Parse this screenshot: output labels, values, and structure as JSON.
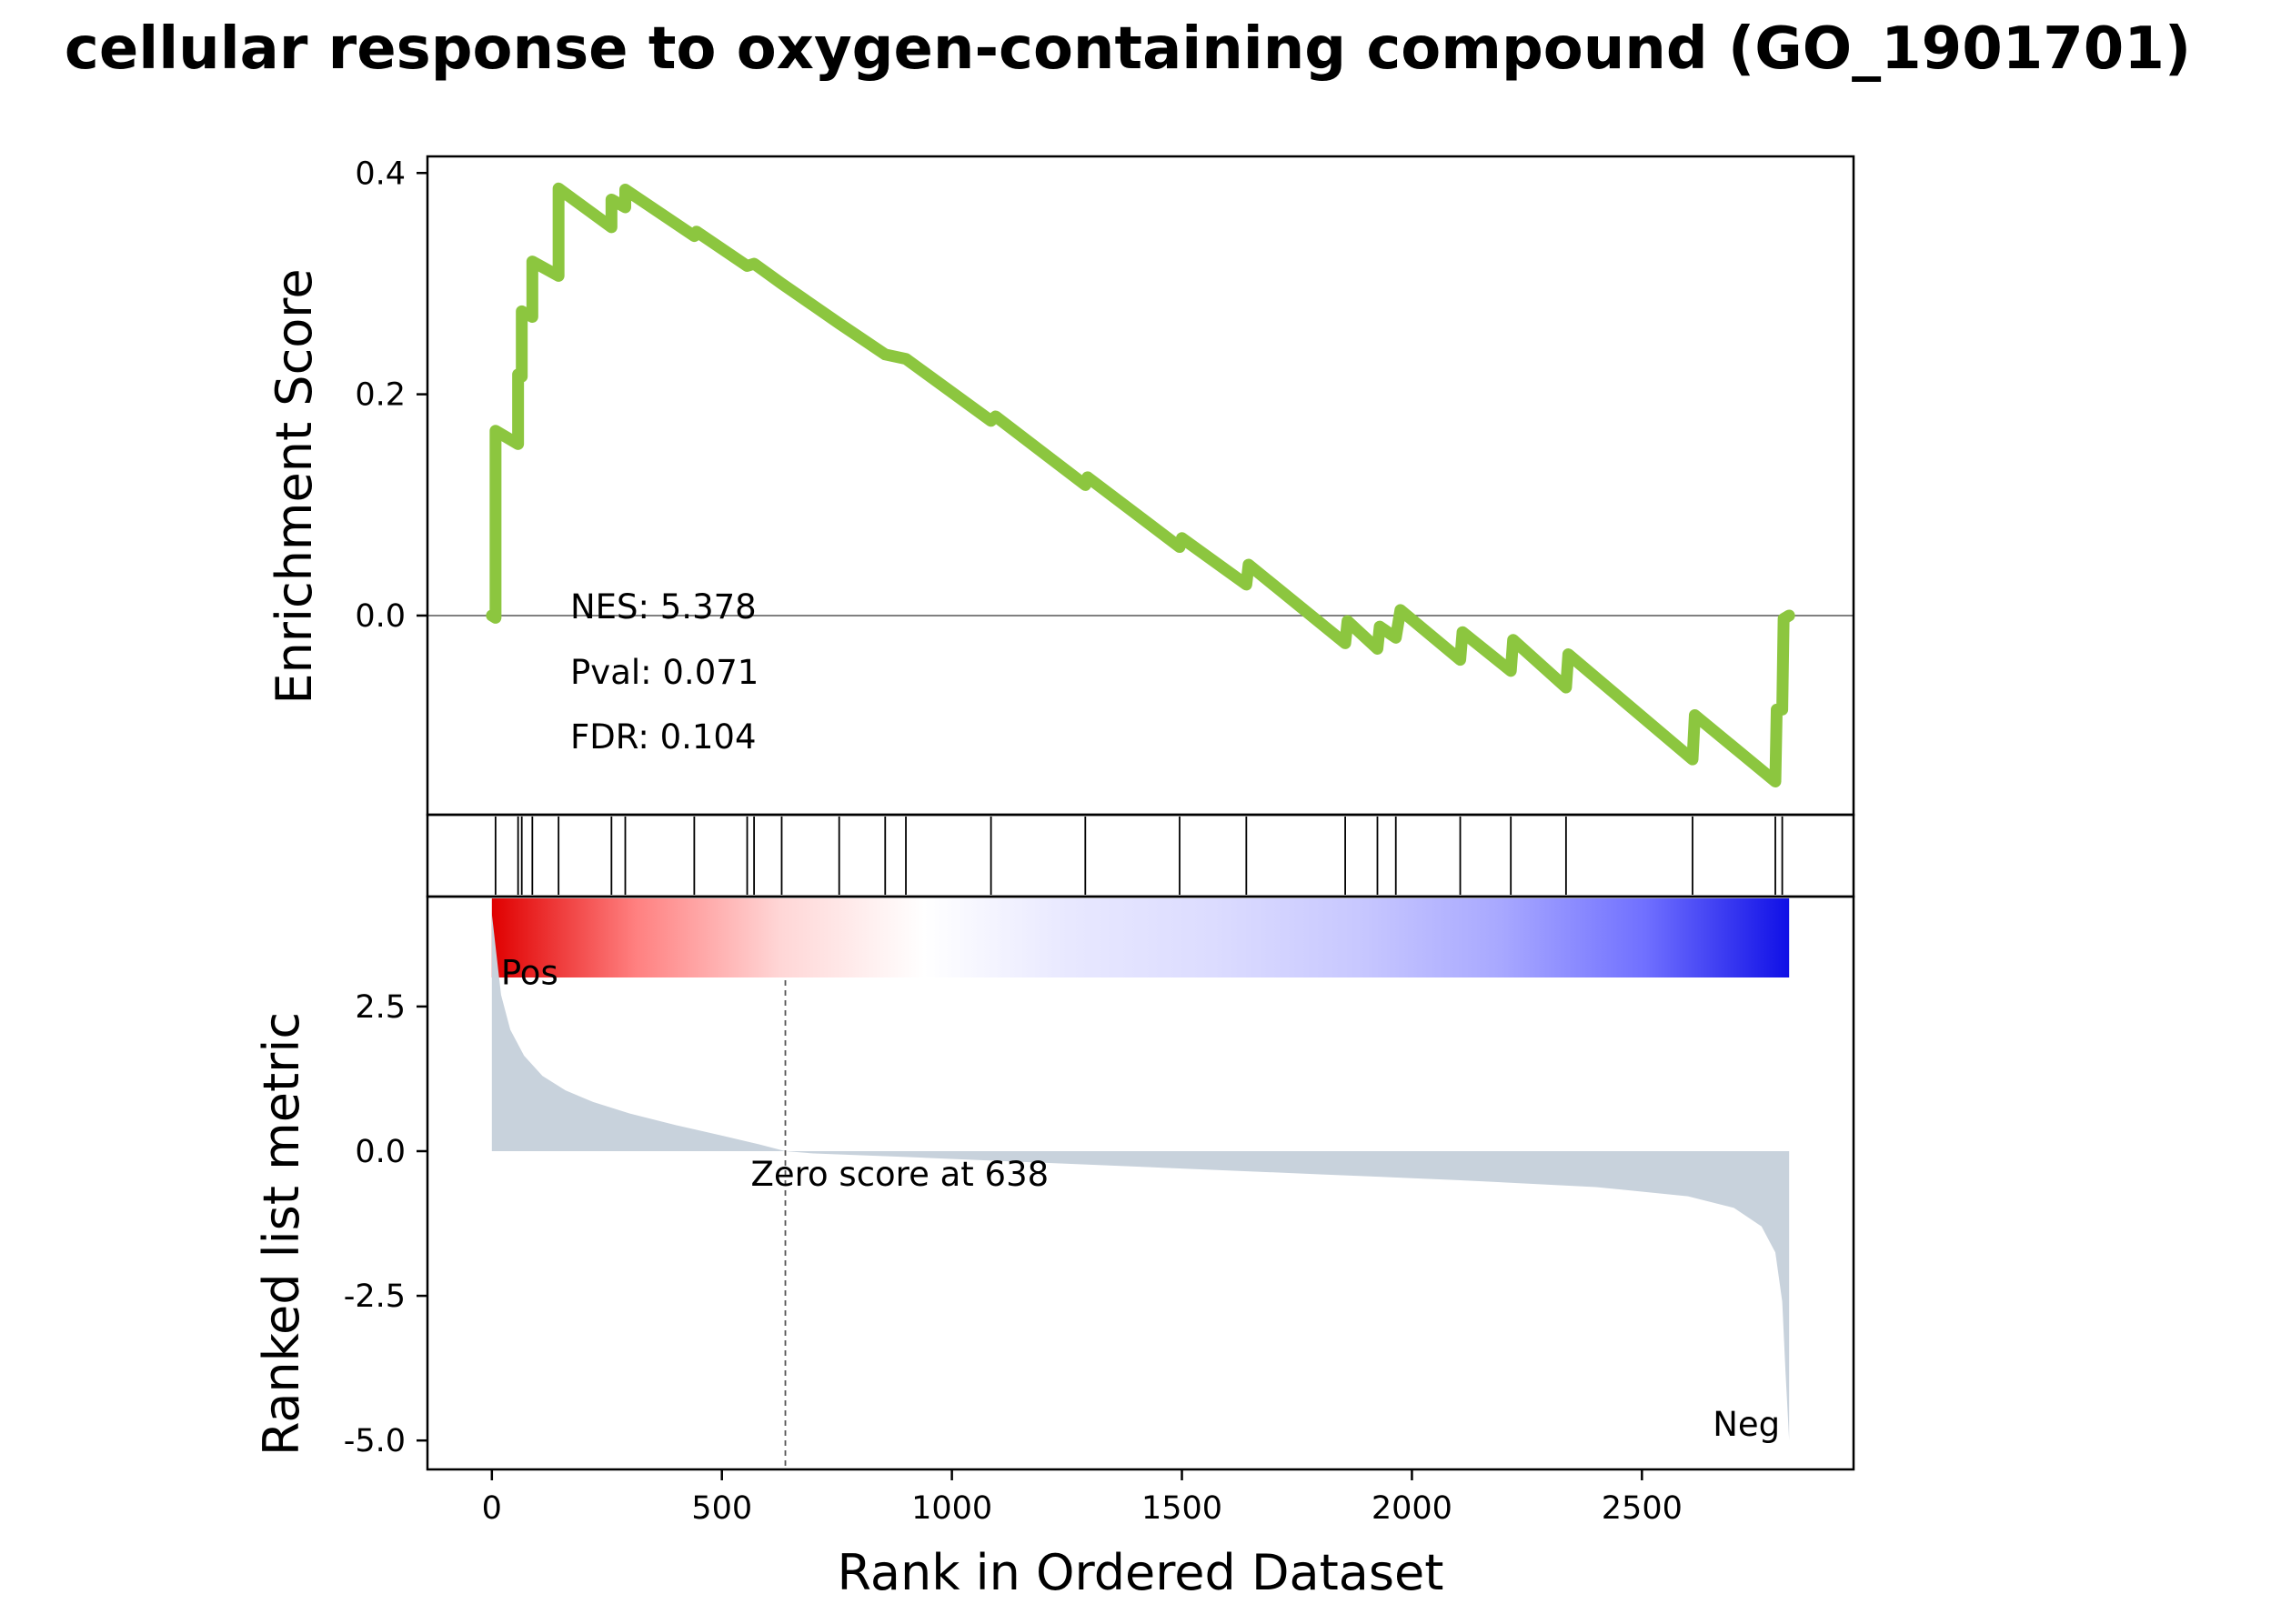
{
  "chart_data": {
    "type": "line",
    "title": "cellular response to oxygen-containing compound (GO_1901701)",
    "xlabel": "Rank in Ordered Dataset",
    "xlim": [
      -140,
      2960
    ],
    "x_ticks": [
      0,
      500,
      1000,
      1500,
      2000,
      2500
    ],
    "x_tick_labels": [
      "0",
      "500",
      "1000",
      "1500",
      "2000",
      "2500"
    ],
    "n_genes": 2820,
    "es_panel": {
      "ylabel": "Enrichment Score",
      "ylim": [
        -0.18,
        0.415
      ],
      "y_ticks": [
        0.0,
        0.2,
        0.4
      ],
      "y_tick_labels": [
        "0.0",
        "0.2",
        "0.4"
      ],
      "line_color": "#8cc63f",
      "zero_line_color": "#808080",
      "stats": {
        "nes": "NES: 5.378",
        "pval": "Pval: 0.071",
        "fdr": "FDR: 0.104"
      },
      "running_es": [
        [
          0,
          0.0
        ],
        [
          8,
          -0.002
        ],
        [
          8,
          0.167
        ],
        [
          57,
          0.155
        ],
        [
          57,
          0.218
        ],
        [
          65,
          0.216
        ],
        [
          65,
          0.275
        ],
        [
          88,
          0.27
        ],
        [
          88,
          0.32
        ],
        [
          145,
          0.307
        ],
        [
          145,
          0.386
        ],
        [
          260,
          0.351
        ],
        [
          260,
          0.376
        ],
        [
          290,
          0.369
        ],
        [
          290,
          0.385
        ],
        [
          440,
          0.343
        ],
        [
          445,
          0.347
        ],
        [
          555,
          0.316
        ],
        [
          570,
          0.318
        ],
        [
          630,
          0.3
        ],
        [
          755,
          0.264
        ],
        [
          855,
          0.236
        ],
        [
          900,
          0.232
        ],
        [
          1085,
          0.176
        ],
        [
          1095,
          0.18
        ],
        [
          1290,
          0.118
        ],
        [
          1295,
          0.125
        ],
        [
          1495,
          0.062
        ],
        [
          1500,
          0.07
        ],
        [
          1640,
          0.028
        ],
        [
          1645,
          0.046
        ],
        [
          1855,
          -0.025
        ],
        [
          1860,
          -0.005
        ],
        [
          1925,
          -0.03
        ],
        [
          1930,
          -0.01
        ],
        [
          1965,
          -0.02
        ],
        [
          1975,
          0.005
        ],
        [
          2105,
          -0.04
        ],
        [
          2110,
          -0.015
        ],
        [
          2215,
          -0.05
        ],
        [
          2220,
          -0.022
        ],
        [
          2335,
          -0.065
        ],
        [
          2340,
          -0.035
        ],
        [
          2610,
          -0.13
        ],
        [
          2615,
          -0.09
        ],
        [
          2790,
          -0.15
        ],
        [
          2793,
          -0.085
        ],
        [
          2805,
          -0.085
        ],
        [
          2808,
          -0.003
        ],
        [
          2820,
          0.0
        ]
      ]
    },
    "hits": [
      8,
      57,
      65,
      88,
      145,
      260,
      290,
      440,
      555,
      570,
      630,
      755,
      855,
      900,
      1085,
      1290,
      1495,
      1640,
      1855,
      1925,
      1965,
      2105,
      2215,
      2335,
      2610,
      2790,
      2805
    ],
    "colorbar": {
      "colors": [
        "#e00000",
        "#ff8080",
        "#ffd6d6",
        "#ffffff",
        "#e8e8ff",
        "#dcdcff",
        "#c8c8ff",
        "#a8a8ff",
        "#7070ff",
        "#1010e6"
      ]
    },
    "rank_panel": {
      "ylabel": "Ranked list metric",
      "ylim": [
        -5.5,
        4.4
      ],
      "y_ticks": [
        2.5,
        0.0,
        -2.5,
        -5.0
      ],
      "y_tick_labels": [
        "2.5",
        "0.0",
        "-2.5",
        "-5.0"
      ],
      "fill_color": "#c8d2dc",
      "zero_cross_rank": 638,
      "zero_label": "Zero score at 638",
      "pos_label": "Pos",
      "neg_label": "Neg",
      "pos_color": "#ff0000",
      "neg_color": "#0000ee",
      "metric": [
        [
          0,
          4.1
        ],
        [
          10,
          3.4
        ],
        [
          20,
          2.7
        ],
        [
          40,
          2.1
        ],
        [
          70,
          1.65
        ],
        [
          110,
          1.3
        ],
        [
          160,
          1.05
        ],
        [
          220,
          0.85
        ],
        [
          300,
          0.65
        ],
        [
          400,
          0.45
        ],
        [
          500,
          0.27
        ],
        [
          580,
          0.12
        ],
        [
          638,
          0.0
        ],
        [
          700,
          -0.04
        ],
        [
          900,
          -0.1
        ],
        [
          1200,
          -0.2
        ],
        [
          1500,
          -0.3
        ],
        [
          1800,
          -0.4
        ],
        [
          2100,
          -0.5
        ],
        [
          2400,
          -0.62
        ],
        [
          2600,
          -0.78
        ],
        [
          2700,
          -0.98
        ],
        [
          2760,
          -1.3
        ],
        [
          2790,
          -1.75
        ],
        [
          2805,
          -2.6
        ],
        [
          2812,
          -3.8
        ],
        [
          2820,
          -5.0
        ]
      ]
    }
  }
}
